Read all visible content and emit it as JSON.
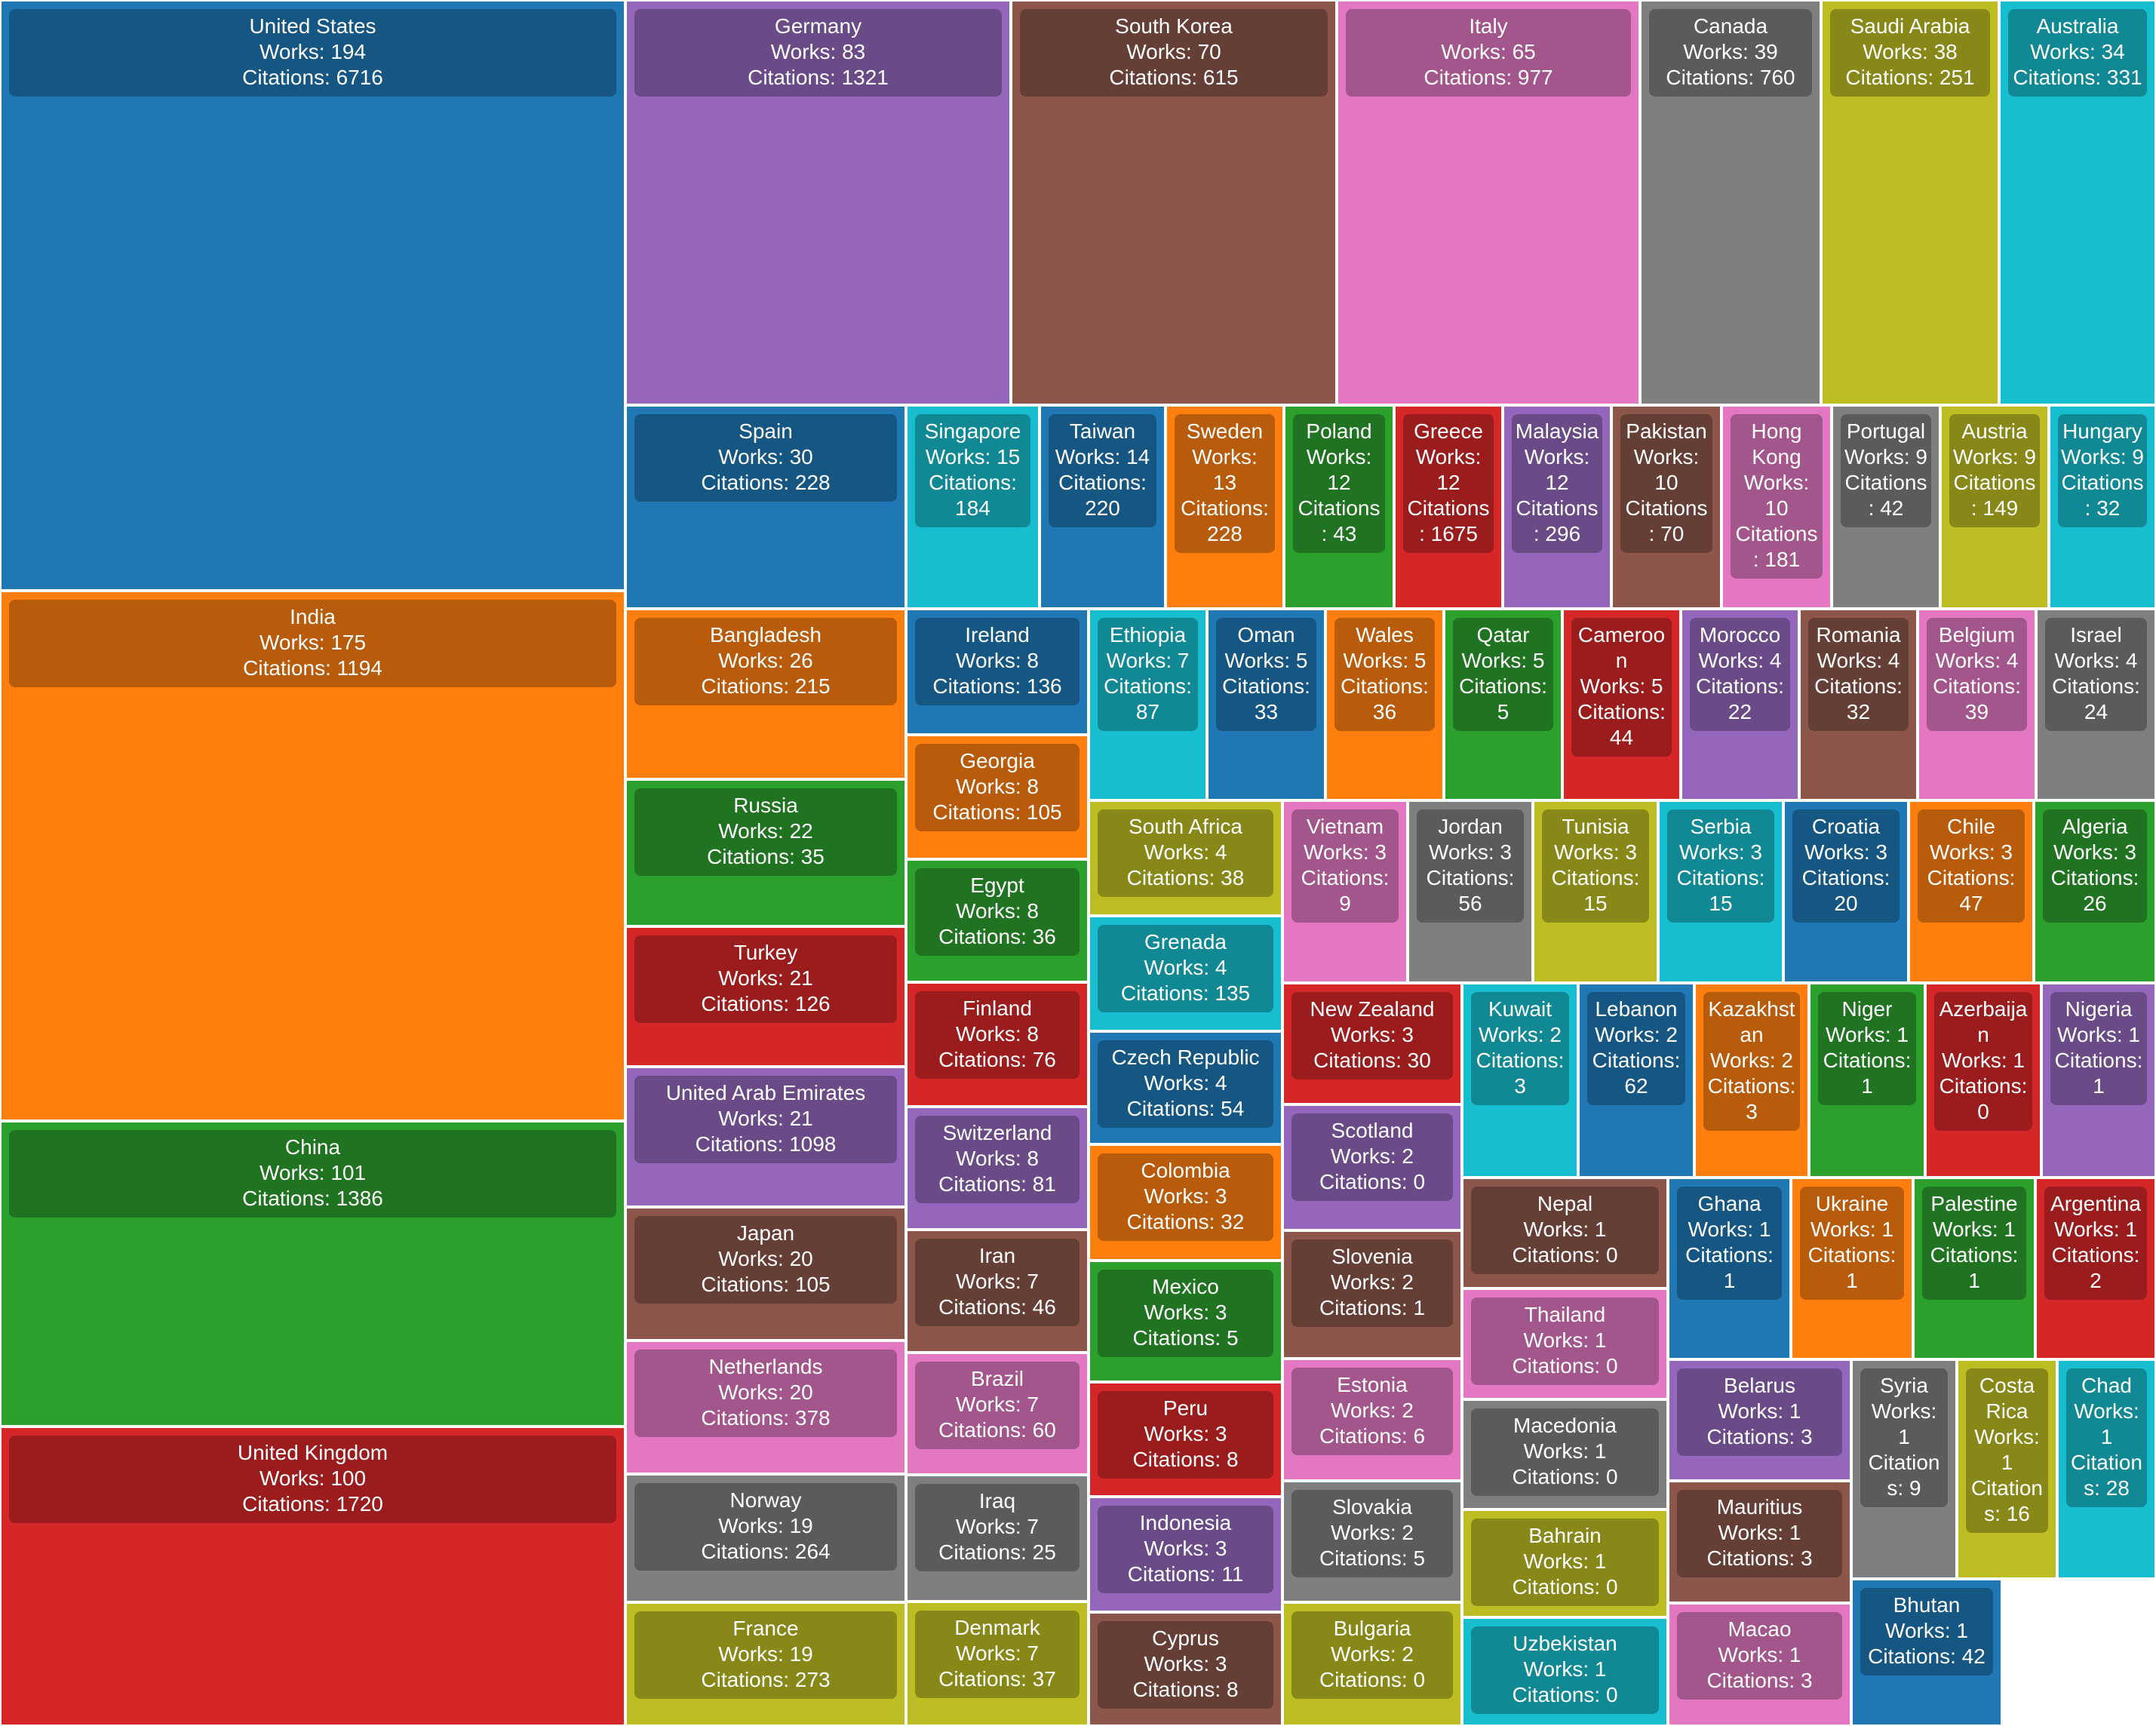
{
  "chart_data": {
    "type": "treemap",
    "title": "",
    "label_prefixes": {
      "works": "Works: ",
      "citations": "Citations: "
    },
    "colors": [
      "#1f77b4",
      "#ff7f0e",
      "#2ca02c",
      "#d62728",
      "#9467bd",
      "#8c564b",
      "#e377c2",
      "#7f7f7f",
      "#bcbd22",
      "#17becf"
    ],
    "items": [
      {
        "name": "United States",
        "works": 194,
        "citations": 6716
      },
      {
        "name": "India",
        "works": 175,
        "citations": 1194
      },
      {
        "name": "China",
        "works": 101,
        "citations": 1386
      },
      {
        "name": "United Kingdom",
        "works": 100,
        "citations": 1720
      },
      {
        "name": "Germany",
        "works": 83,
        "citations": 1321
      },
      {
        "name": "South Korea",
        "works": 70,
        "citations": 615
      },
      {
        "name": "Italy",
        "works": 65,
        "citations": 977
      },
      {
        "name": "Canada",
        "works": 39,
        "citations": 760
      },
      {
        "name": "Saudi Arabia",
        "works": 38,
        "citations": 251
      },
      {
        "name": "Australia",
        "works": 34,
        "citations": 331
      },
      {
        "name": "Spain",
        "works": 30,
        "citations": 228
      },
      {
        "name": "Bangladesh",
        "works": 26,
        "citations": 215
      },
      {
        "name": "Russia",
        "works": 22,
        "citations": 35
      },
      {
        "name": "Turkey",
        "works": 21,
        "citations": 126
      },
      {
        "name": "United Arab Emirates",
        "works": 21,
        "citations": 1098
      },
      {
        "name": "Japan",
        "works": 20,
        "citations": 105
      },
      {
        "name": "Netherlands",
        "works": 20,
        "citations": 378
      },
      {
        "name": "Norway",
        "works": 19,
        "citations": 264
      },
      {
        "name": "France",
        "works": 19,
        "citations": 273
      },
      {
        "name": "Singapore",
        "works": 15,
        "citations": 184
      },
      {
        "name": "Taiwan",
        "works": 14,
        "citations": 220
      },
      {
        "name": "Sweden",
        "works": 13,
        "citations": 228
      },
      {
        "name": "Poland",
        "works": 12,
        "citations": 43
      },
      {
        "name": "Greece",
        "works": 12,
        "citations": 1675
      },
      {
        "name": "Malaysia",
        "works": 12,
        "citations": 296
      },
      {
        "name": "Pakistan",
        "works": 10,
        "citations": 70
      },
      {
        "name": "Hong Kong",
        "works": 10,
        "citations": 181
      },
      {
        "name": "Portugal",
        "works": 9,
        "citations": 42
      },
      {
        "name": "Austria",
        "works": 9,
        "citations": 149
      },
      {
        "name": "Hungary",
        "works": 9,
        "citations": 32
      },
      {
        "name": "Ireland",
        "works": 8,
        "citations": 136
      },
      {
        "name": "Georgia",
        "works": 8,
        "citations": 105
      },
      {
        "name": "Egypt",
        "works": 8,
        "citations": 36
      },
      {
        "name": "Finland",
        "works": 8,
        "citations": 76
      },
      {
        "name": "Switzerland",
        "works": 8,
        "citations": 81
      },
      {
        "name": "Iran",
        "works": 7,
        "citations": 46
      },
      {
        "name": "Brazil",
        "works": 7,
        "citations": 60
      },
      {
        "name": "Iraq",
        "works": 7,
        "citations": 25
      },
      {
        "name": "Denmark",
        "works": 7,
        "citations": 37
      },
      {
        "name": "Ethiopia",
        "works": 7,
        "citations": 87
      },
      {
        "name": "Oman",
        "works": 5,
        "citations": 33
      },
      {
        "name": "Wales",
        "works": 5,
        "citations": 36
      },
      {
        "name": "Qatar",
        "works": 5,
        "citations": 5
      },
      {
        "name": "Cameroon",
        "works": 5,
        "citations": 44
      },
      {
        "name": "Morocco",
        "works": 4,
        "citations": 22
      },
      {
        "name": "Romania",
        "works": 4,
        "citations": 32
      },
      {
        "name": "Belgium",
        "works": 4,
        "citations": 39
      },
      {
        "name": "Israel",
        "works": 4,
        "citations": 24
      },
      {
        "name": "South Africa",
        "works": 4,
        "citations": 38
      },
      {
        "name": "Grenada",
        "works": 4,
        "citations": 135
      },
      {
        "name": "Czech Republic",
        "works": 4,
        "citations": 54
      },
      {
        "name": "Colombia",
        "works": 3,
        "citations": 32
      },
      {
        "name": "Mexico",
        "works": 3,
        "citations": 5
      },
      {
        "name": "Peru",
        "works": 3,
        "citations": 8
      },
      {
        "name": "Indonesia",
        "works": 3,
        "citations": 11
      },
      {
        "name": "Cyprus",
        "works": 3,
        "citations": 8
      },
      {
        "name": "Vietnam",
        "works": 3,
        "citations": 9
      },
      {
        "name": "Jordan",
        "works": 3,
        "citations": 56
      },
      {
        "name": "Tunisia",
        "works": 3,
        "citations": 15
      },
      {
        "name": "Serbia",
        "works": 3,
        "citations": 15
      },
      {
        "name": "Croatia",
        "works": 3,
        "citations": 20
      },
      {
        "name": "Chile",
        "works": 3,
        "citations": 47
      },
      {
        "name": "Algeria",
        "works": 3,
        "citations": 26
      },
      {
        "name": "New Zealand",
        "works": 3,
        "citations": 30
      },
      {
        "name": "Scotland",
        "works": 2,
        "citations": 0
      },
      {
        "name": "Slovenia",
        "works": 2,
        "citations": 1
      },
      {
        "name": "Estonia",
        "works": 2,
        "citations": 6
      },
      {
        "name": "Slovakia",
        "works": 2,
        "citations": 5
      },
      {
        "name": "Bulgaria",
        "works": 2,
        "citations": 0
      },
      {
        "name": "Kuwait",
        "works": 2,
        "citations": 3
      },
      {
        "name": "Lebanon",
        "works": 2,
        "citations": 62
      },
      {
        "name": "Kazakhstan",
        "works": 2,
        "citations": 3
      },
      {
        "name": "Niger",
        "works": 1,
        "citations": 1
      },
      {
        "name": "Azerbaijan",
        "works": 1,
        "citations": 0
      },
      {
        "name": "Nigeria",
        "works": 1,
        "citations": 1
      },
      {
        "name": "Nepal",
        "works": 1,
        "citations": 0
      },
      {
        "name": "Thailand",
        "works": 1,
        "citations": 0
      },
      {
        "name": "Macedonia",
        "works": 1,
        "citations": 0
      },
      {
        "name": "Bahrain",
        "works": 1,
        "citations": 0
      },
      {
        "name": "Uzbekistan",
        "works": 1,
        "citations": 0
      },
      {
        "name": "Ghana",
        "works": 1,
        "citations": 1
      },
      {
        "name": "Ukraine",
        "works": 1,
        "citations": 1
      },
      {
        "name": "Palestine",
        "works": 1,
        "citations": 1
      },
      {
        "name": "Argentina",
        "works": 1,
        "citations": 2
      },
      {
        "name": "Belarus",
        "works": 1,
        "citations": 3
      },
      {
        "name": "Mauritius",
        "works": 1,
        "citations": 3
      },
      {
        "name": "Macao",
        "works": 1,
        "citations": 3
      },
      {
        "name": "Syria",
        "works": 1,
        "citations": 9
      },
      {
        "name": "Costa Rica",
        "works": 1,
        "citations": 16
      },
      {
        "name": "Chad",
        "works": 1,
        "citations": 28
      },
      {
        "name": "Bhutan",
        "works": 1,
        "citations": 42
      }
    ]
  }
}
